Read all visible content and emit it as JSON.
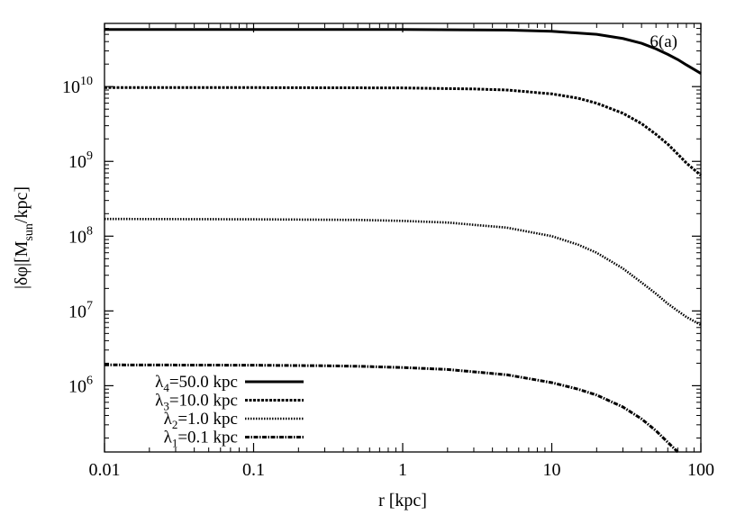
{
  "chart_data": {
    "type": "line",
    "title": "",
    "panel_label": "6(a)",
    "xlabel": "r [kpc]",
    "ylabel": "|δφ|[M_sun/kpc]",
    "ylabel_parts": {
      "main": "|δφ|[M",
      "sub": "sun",
      "tail": "/kpc]"
    },
    "xscale": "log",
    "yscale": "log",
    "xlim": [
      0.01,
      100
    ],
    "ylim": [
      130000,
      70000000000
    ],
    "x_ticks": [
      0.01,
      0.1,
      1,
      10,
      100
    ],
    "x_tick_labels": [
      "0.01",
      "0.1",
      "1",
      "10",
      "100"
    ],
    "y_ticks": [
      1000000,
      10000000,
      100000000,
      1000000000,
      10000000000
    ],
    "y_tick_labels": [
      {
        "base": "10",
        "exp": "6"
      },
      {
        "base": "10",
        "exp": "7"
      },
      {
        "base": "10",
        "exp": "8"
      },
      {
        "base": "10",
        "exp": "9"
      },
      {
        "base": "10",
        "exp": "10"
      }
    ],
    "grid": false,
    "legend_position": "bottom-left",
    "series": [
      {
        "name": "λ4=50.0 kpc",
        "name_parts": {
          "sym": "λ",
          "sub": "4",
          "text": "=50.0 kpc"
        },
        "style": "solid-thick",
        "color": "#000000",
        "x": [
          0.01,
          0.1,
          1,
          5,
          10,
          20,
          30,
          40,
          50,
          60,
          70,
          80,
          90,
          100
        ],
        "y": [
          58000000000,
          58000000000,
          58000000000,
          57000000000,
          55000000000,
          50000000000,
          44000000000,
          38000000000,
          32000000000,
          27000000000,
          23000000000,
          19500000000,
          17000000000,
          15000000000
        ]
      },
      {
        "name": "λ3=10.0 kpc",
        "name_parts": {
          "sym": "λ",
          "sub": "3",
          "text": "=10.0 kpc"
        },
        "style": "dashed-dense",
        "color": "#000000",
        "x": [
          0.01,
          0.1,
          1,
          3,
          5,
          10,
          15,
          20,
          30,
          40,
          50,
          60,
          70,
          80,
          100
        ],
        "y": [
          9700000000,
          9700000000,
          9600000000,
          9300000000,
          9000000000,
          8000000000,
          7000000000,
          6000000000,
          4400000000,
          3200000000,
          2300000000,
          1700000000,
          1250000000,
          950000000,
          650000000
        ]
      },
      {
        "name": "λ2=1.0 kpc",
        "name_parts": {
          "sym": "λ",
          "sub": "2",
          "text": "=1.0 kpc"
        },
        "style": "dotted",
        "color": "#000000",
        "x": [
          0.01,
          0.1,
          0.5,
          1,
          2,
          5,
          10,
          15,
          20,
          30,
          40,
          50,
          60,
          70,
          80,
          100
        ],
        "y": [
          170000000,
          168000000,
          165000000,
          160000000,
          152000000,
          130000000,
          100000000,
          77000000,
          60000000,
          37000000,
          24000000,
          17000000,
          12500000,
          10000000,
          8300000,
          6500000
        ]
      },
      {
        "name": "λ1=0.1 kpc",
        "name_parts": {
          "sym": "λ",
          "sub": "1",
          "text": "=0.1 kpc"
        },
        "style": "dash-dot",
        "color": "#000000",
        "x": [
          0.01,
          0.1,
          0.3,
          0.5,
          1,
          2,
          5,
          10,
          15,
          20,
          30,
          40,
          50,
          60,
          65,
          70
        ],
        "y": [
          1900000,
          1880000,
          1850000,
          1820000,
          1750000,
          1650000,
          1400000,
          1100000,
          900000,
          750000,
          520000,
          360000,
          250000,
          175000,
          150000,
          130000
        ]
      }
    ]
  }
}
